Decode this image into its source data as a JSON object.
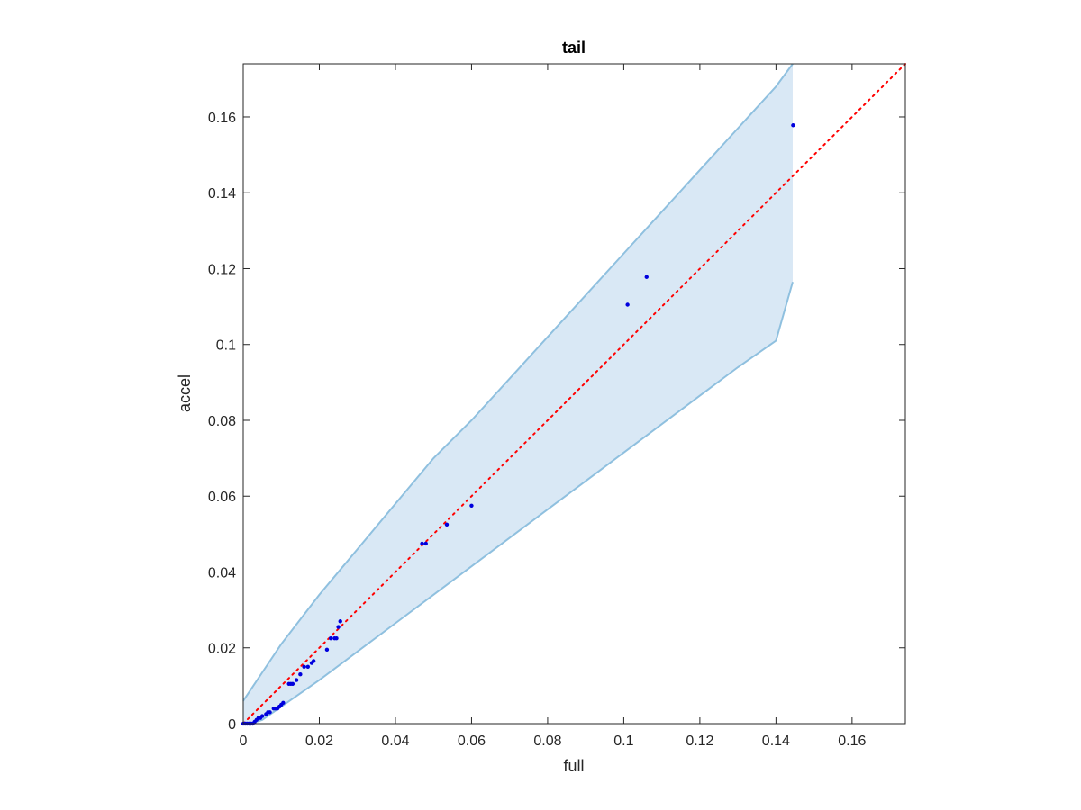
{
  "chart_data": {
    "type": "scatter",
    "title": "tail",
    "xlabel": "full",
    "ylabel": "accel",
    "xlim": [
      0,
      0.174
    ],
    "ylim": [
      0,
      0.174
    ],
    "xticks": [
      "0",
      "0.02",
      "0.04",
      "0.06",
      "0.08",
      "0.1",
      "0.12",
      "0.14",
      "0.16"
    ],
    "yticks": [
      "0",
      "0.02",
      "0.04",
      "0.06",
      "0.08",
      "0.1",
      "0.12",
      "0.14",
      "0.16"
    ],
    "grid": false,
    "colors": {
      "points": "#0000dd",
      "reference_line": "#ff0000",
      "band_fill": "#d9e8f5",
      "band_edge": "#8fc0df",
      "axes": "#262626"
    },
    "reference_line": {
      "style": "dotted",
      "x": [
        0,
        0.174
      ],
      "y": [
        0,
        0.174
      ]
    },
    "band": {
      "x": [
        0,
        0.002,
        0.005,
        0.01,
        0.02,
        0.03,
        0.04,
        0.05,
        0.06,
        0.07,
        0.08,
        0.09,
        0.1,
        0.11,
        0.12,
        0.13,
        0.14,
        0.1444
      ],
      "upper": [
        0.006,
        0.009,
        0.0135,
        0.021,
        0.034,
        0.046,
        0.058,
        0.07,
        0.08,
        0.091,
        0.102,
        0.113,
        0.124,
        0.135,
        0.146,
        0.157,
        0.168,
        0.174
      ],
      "lower": [
        0,
        0,
        0.001,
        0.0045,
        0.0115,
        0.019,
        0.0265,
        0.034,
        0.0415,
        0.049,
        0.0565,
        0.064,
        0.0715,
        0.079,
        0.0865,
        0.094,
        0.101,
        0.1165
      ]
    },
    "series": [
      {
        "x": [
          0,
          0.0005,
          0.001,
          0.0015,
          0.002,
          0.0025,
          0.003,
          0.0035,
          0.004,
          0.0045,
          0.005,
          0.006,
          0.0065,
          0.007,
          0.008,
          0.0085,
          0.009,
          0.0095,
          0.01,
          0.0105,
          0.012,
          0.0125,
          0.013,
          0.014,
          0.015,
          0.016,
          0.017,
          0.018,
          0.0185,
          0.022,
          0.023,
          0.024,
          0.0245,
          0.025,
          0.0255,
          0.047,
          0.048,
          0.0535,
          0.06,
          0.101,
          0.106,
          0.1445
        ],
        "y": [
          0,
          0,
          0,
          0,
          0,
          0,
          0.0005,
          0.001,
          0.0015,
          0.0015,
          0.002,
          0.0025,
          0.003,
          0.003,
          0.004,
          0.004,
          0.004,
          0.0045,
          0.005,
          0.0055,
          0.0105,
          0.0105,
          0.0105,
          0.0115,
          0.013,
          0.015,
          0.015,
          0.016,
          0.0165,
          0.0195,
          0.0225,
          0.0225,
          0.0225,
          0.0255,
          0.027,
          0.0475,
          0.0475,
          0.0525,
          0.0575,
          0.1105,
          0.1178,
          0.1578
        ]
      }
    ]
  }
}
